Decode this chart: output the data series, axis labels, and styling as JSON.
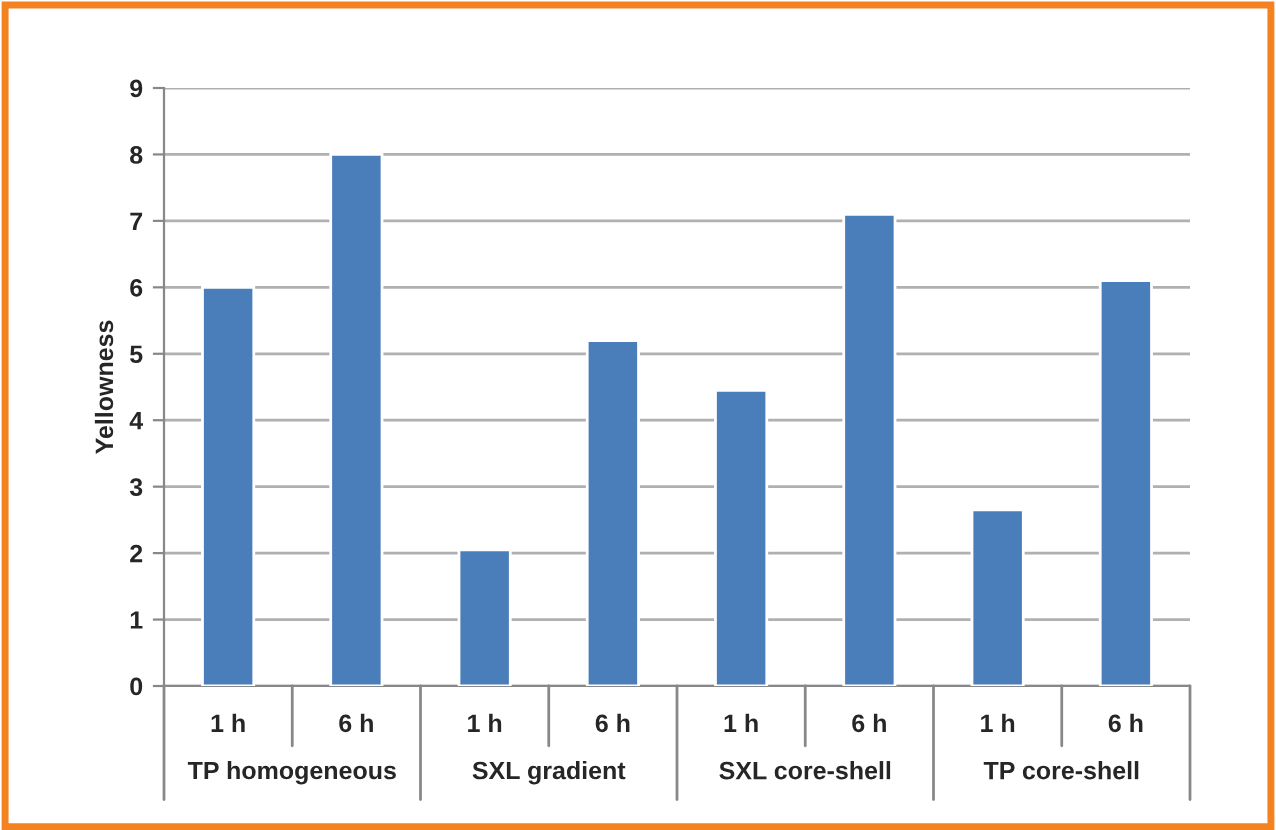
{
  "chart_data": {
    "type": "bar",
    "ylabel": "Yellowness",
    "categories": [
      "1 h",
      "6 h",
      "1 h",
      "6 h",
      "1 h",
      "6 h",
      "1 h",
      "6 h"
    ],
    "values": [
      6.0,
      8.0,
      2.05,
      5.2,
      4.45,
      7.1,
      2.65,
      6.1
    ],
    "color": "#4a7ebb",
    "ylim": [
      0,
      9
    ],
    "yticks": [
      0,
      1,
      2,
      3,
      4,
      5,
      6,
      7,
      8,
      9
    ],
    "grid": "y",
    "annotations": [
      "TP homogeneous",
      "SXL gradient",
      "SXL core-shell",
      "TP core-shell"
    ]
  }
}
